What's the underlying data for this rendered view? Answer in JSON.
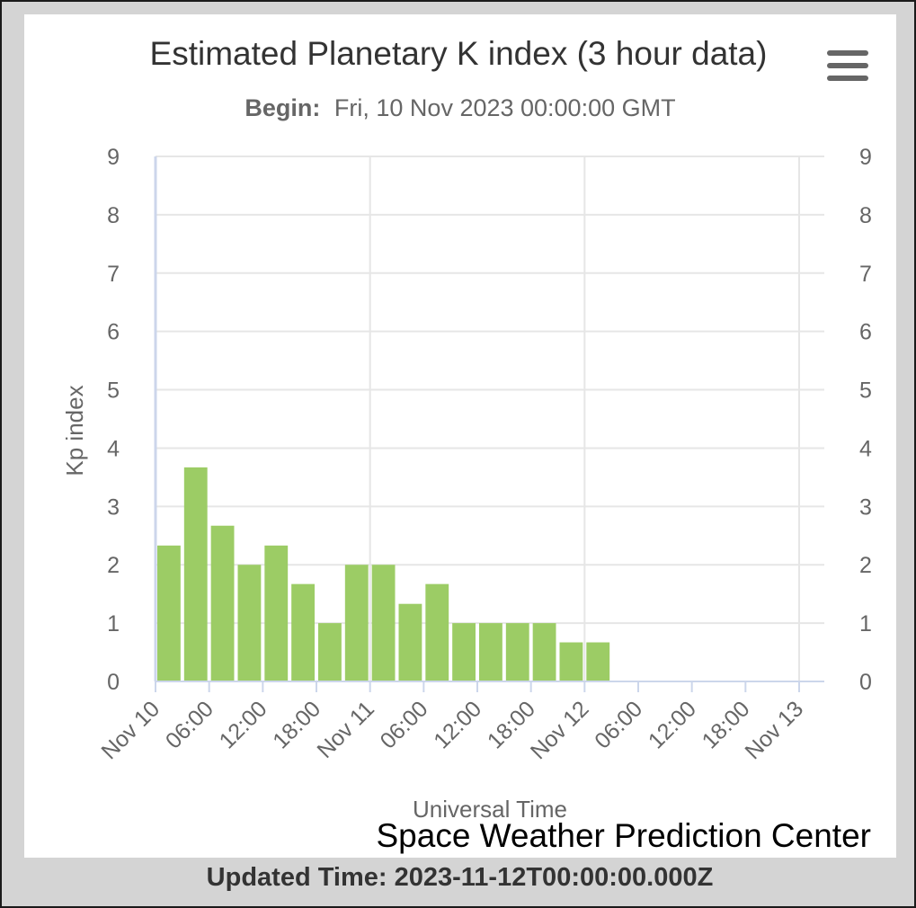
{
  "chart_data": {
    "type": "bar",
    "title": "Estimated Planetary K index (3 hour data)",
    "subtitle_label": "Begin:",
    "subtitle_value": "Fri, 10 Nov 2023 00:00:00 GMT",
    "xlabel": "Universal Time",
    "ylabel": "Kp index",
    "ylim": [
      0,
      9
    ],
    "yticks": [
      "0",
      "1",
      "2",
      "3",
      "4",
      "5",
      "6",
      "7",
      "8",
      "9"
    ],
    "xlim_hours": [
      0,
      72
    ],
    "bar_interval_hours": 3,
    "xticks": [
      {
        "hour": 0,
        "label": "Nov 10"
      },
      {
        "hour": 6,
        "label": "06:00"
      },
      {
        "hour": 12,
        "label": "12:00"
      },
      {
        "hour": 18,
        "label": "18:00"
      },
      {
        "hour": 24,
        "label": "Nov 11"
      },
      {
        "hour": 30,
        "label": "06:00"
      },
      {
        "hour": 36,
        "label": "12:00"
      },
      {
        "hour": 42,
        "label": "18:00"
      },
      {
        "hour": 48,
        "label": "Nov 12"
      },
      {
        "hour": 54,
        "label": "06:00"
      },
      {
        "hour": 60,
        "label": "12:00"
      },
      {
        "hour": 66,
        "label": "18:00"
      },
      {
        "hour": 72,
        "label": "Nov 13"
      }
    ],
    "values": [
      2.33,
      3.67,
      2.67,
      2.0,
      2.33,
      1.67,
      1.0,
      2.0,
      2.0,
      1.33,
      1.67,
      1.0,
      1.0,
      1.0,
      1.0,
      0.67,
      0.67
    ],
    "bar_color": "#9ccc65",
    "grid": true,
    "right_axis": true
  },
  "ui": {
    "menu_icon": "hamburger-menu-icon",
    "credit": "Space Weather Prediction Center",
    "updated": "Updated Time: 2023-11-12T00:00:00.000Z"
  }
}
